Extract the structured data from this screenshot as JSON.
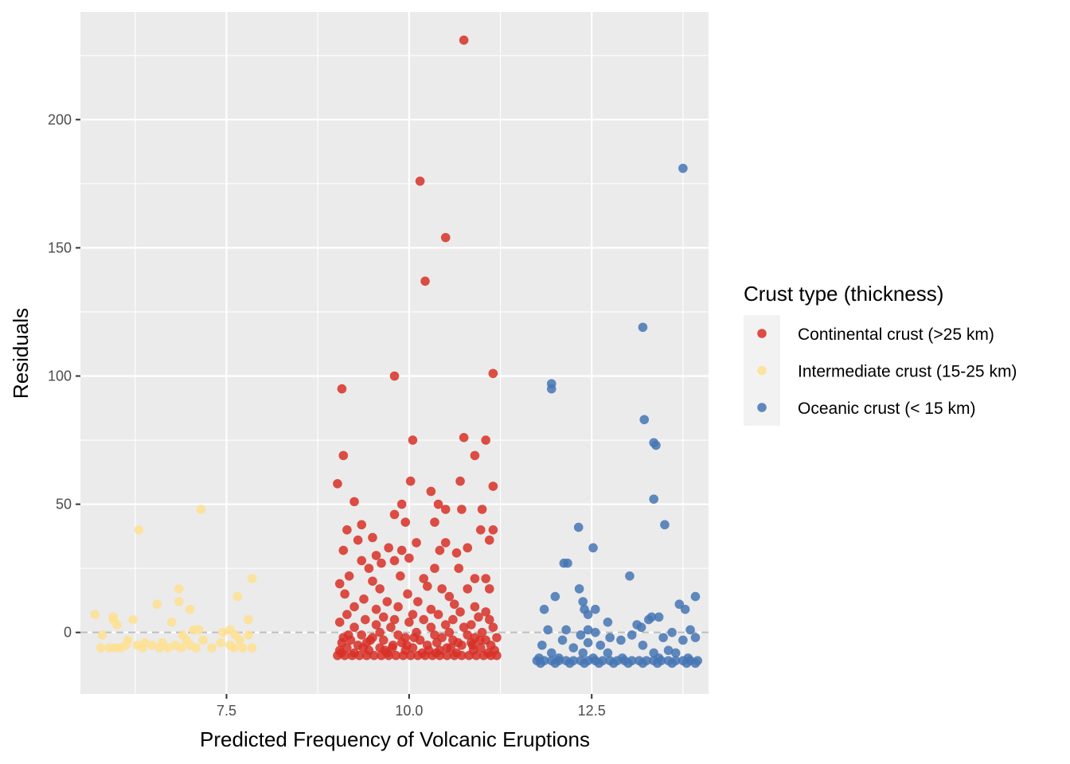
{
  "chart_data": {
    "type": "scatter",
    "title": "",
    "xlabel": "Predicted Frequency of Volcanic Eruptions",
    "ylabel": "Residuals",
    "xlim": [
      5.5,
      14.1
    ],
    "ylim": [
      -24,
      242
    ],
    "x_ticks": [
      7.5,
      10.0,
      12.5
    ],
    "x_tick_labels": [
      "7.5",
      "10.0",
      "12.5"
    ],
    "y_ticks": [
      0,
      50,
      100,
      150,
      200
    ],
    "y_tick_labels": [
      "0",
      "50",
      "100",
      "150",
      "200"
    ],
    "grid": true,
    "reference_line": {
      "y": 0,
      "style": "dashed",
      "color": "#bdbdbd"
    },
    "legend": {
      "title": "Crust type (thickness)",
      "position": "right"
    },
    "series": [
      {
        "name": "Continental crust (>25 km)",
        "color": "#d73027",
        "points": [
          [
            10.75,
            231
          ],
          [
            10.15,
            176
          ],
          [
            10.5,
            154
          ],
          [
            10.22,
            137
          ],
          [
            9.8,
            100
          ],
          [
            11.15,
            101
          ],
          [
            9.08,
            95
          ],
          [
            10.05,
            75
          ],
          [
            10.75,
            76
          ],
          [
            11.05,
            75
          ],
          [
            9.1,
            69
          ],
          [
            10.9,
            69
          ],
          [
            9.02,
            58
          ],
          [
            10.02,
            59
          ],
          [
            10.7,
            59
          ],
          [
            11.15,
            57
          ],
          [
            10.3,
            55
          ],
          [
            9.25,
            51
          ],
          [
            9.9,
            50
          ],
          [
            10.4,
            50
          ],
          [
            10.5,
            48
          ],
          [
            10.72,
            48
          ],
          [
            11.0,
            48
          ],
          [
            9.8,
            46
          ],
          [
            9.95,
            43
          ],
          [
            10.35,
            43
          ],
          [
            9.35,
            42
          ],
          [
            9.15,
            40
          ],
          [
            10.98,
            40
          ],
          [
            11.15,
            40
          ],
          [
            9.5,
            37
          ],
          [
            9.3,
            36
          ],
          [
            11.1,
            36
          ],
          [
            10.1,
            35
          ],
          [
            10.5,
            35
          ],
          [
            9.72,
            33
          ],
          [
            10.8,
            33
          ],
          [
            9.1,
            32
          ],
          [
            9.9,
            32
          ],
          [
            10.42,
            32
          ],
          [
            9.55,
            30
          ],
          [
            10.0,
            29
          ],
          [
            10.65,
            31
          ],
          [
            9.35,
            28
          ],
          [
            9.8,
            28
          ],
          [
            10.35,
            25
          ],
          [
            10.68,
            25
          ],
          [
            9.45,
            25
          ],
          [
            9.62,
            27
          ],
          [
            9.18,
            22
          ],
          [
            9.88,
            22
          ],
          [
            10.2,
            21
          ],
          [
            10.9,
            21
          ],
          [
            11.05,
            21
          ],
          [
            9.5,
            20
          ],
          [
            10.25,
            18
          ],
          [
            10.45,
            17
          ],
          [
            10.8,
            17
          ],
          [
            11.1,
            17
          ],
          [
            9.05,
            19
          ],
          [
            9.6,
            17
          ],
          [
            9.12,
            15
          ],
          [
            9.98,
            15
          ],
          [
            10.55,
            14
          ],
          [
            9.38,
            13
          ],
          [
            9.7,
            12
          ],
          [
            10.12,
            12
          ],
          [
            10.62,
            11
          ],
          [
            10.9,
            10
          ],
          [
            9.25,
            10
          ],
          [
            9.55,
            9
          ],
          [
            9.85,
            10
          ],
          [
            10.3,
            9
          ],
          [
            10.7,
            8
          ],
          [
            11.05,
            8
          ],
          [
            9.15,
            7
          ],
          [
            9.65,
            6
          ],
          [
            10.05,
            7
          ],
          [
            10.4,
            7
          ],
          [
            10.95,
            6
          ],
          [
            9.4,
            5
          ],
          [
            9.8,
            5
          ],
          [
            10.2,
            5
          ],
          [
            10.6,
            5
          ],
          [
            11.1,
            5
          ],
          [
            9.05,
            4
          ],
          [
            9.55,
            3
          ],
          [
            10.0,
            4
          ],
          [
            10.5,
            3
          ],
          [
            10.85,
            3
          ],
          [
            9.25,
            2
          ],
          [
            9.75,
            2
          ],
          [
            10.3,
            2
          ],
          [
            10.75,
            2
          ],
          [
            11.15,
            2
          ],
          [
            9.6,
            0
          ],
          [
            10.1,
            0
          ],
          [
            10.55,
            0
          ],
          [
            11.0,
            0
          ],
          [
            9.35,
            -1
          ],
          [
            9.85,
            -1
          ],
          [
            10.35,
            -1
          ],
          [
            10.8,
            -1
          ],
          [
            9.1,
            -2
          ],
          [
            9.5,
            -2
          ],
          [
            9.95,
            -2
          ],
          [
            10.45,
            -2
          ],
          [
            10.9,
            -2
          ],
          [
            11.2,
            -2
          ],
          [
            9.2,
            -3
          ],
          [
            9.65,
            -3
          ],
          [
            10.15,
            -3
          ],
          [
            10.6,
            -3
          ],
          [
            11.05,
            -3
          ],
          [
            9.08,
            -4
          ],
          [
            9.42,
            -4
          ],
          [
            9.9,
            -4
          ],
          [
            10.38,
            -4
          ],
          [
            10.85,
            -4
          ],
          [
            9.3,
            -5
          ],
          [
            9.78,
            -5
          ],
          [
            10.25,
            -5
          ],
          [
            10.72,
            -5
          ],
          [
            11.12,
            -5
          ],
          [
            9.15,
            -6
          ],
          [
            9.6,
            -6
          ],
          [
            10.05,
            -6
          ],
          [
            10.52,
            -6
          ],
          [
            10.98,
            -6
          ],
          [
            9.05,
            -7
          ],
          [
            9.45,
            -7
          ],
          [
            9.95,
            -7
          ],
          [
            10.42,
            -7
          ],
          [
            10.88,
            -7
          ],
          [
            9.25,
            -8
          ],
          [
            9.7,
            -8
          ],
          [
            10.18,
            -8
          ],
          [
            10.65,
            -8
          ],
          [
            11.08,
            -8
          ],
          [
            9.02,
            -9
          ],
          [
            9.12,
            -9
          ],
          [
            9.22,
            -9
          ],
          [
            9.32,
            -9
          ],
          [
            9.42,
            -9
          ],
          [
            9.52,
            -9
          ],
          [
            9.62,
            -9
          ],
          [
            9.72,
            -9
          ],
          [
            9.82,
            -9
          ],
          [
            9.92,
            -9
          ],
          [
            10.02,
            -9
          ],
          [
            10.12,
            -9
          ],
          [
            10.22,
            -9
          ],
          [
            10.32,
            -9
          ],
          [
            10.42,
            -9
          ],
          [
            10.52,
            -9
          ],
          [
            10.62,
            -9
          ],
          [
            10.72,
            -9
          ],
          [
            10.82,
            -9
          ],
          [
            10.92,
            -9
          ],
          [
            11.02,
            -9
          ],
          [
            11.12,
            -9
          ],
          [
            11.2,
            -9
          ],
          [
            9.07,
            -8
          ],
          [
            9.37,
            -6
          ],
          [
            9.67,
            -7
          ],
          [
            9.97,
            -5
          ],
          [
            10.27,
            -7
          ],
          [
            10.57,
            -6
          ],
          [
            10.87,
            -5
          ],
          [
            11.17,
            -7
          ],
          [
            9.17,
            -1
          ],
          [
            9.47,
            -3
          ],
          [
            9.77,
            -6
          ],
          [
            10.07,
            -2
          ],
          [
            10.37,
            -8
          ],
          [
            10.67,
            -4
          ],
          [
            10.97,
            -3
          ]
        ]
      },
      {
        "name": "Intermediate crust (15-25 km)",
        "color": "#fee090",
        "points": [
          [
            7.15,
            48
          ],
          [
            6.3,
            40
          ],
          [
            7.85,
            21
          ],
          [
            6.85,
            17
          ],
          [
            7.65,
            14
          ],
          [
            6.55,
            11
          ],
          [
            6.85,
            12
          ],
          [
            7.0,
            9
          ],
          [
            5.7,
            7
          ],
          [
            5.95,
            6
          ],
          [
            5.95,
            5
          ],
          [
            6.22,
            5
          ],
          [
            6.75,
            4
          ],
          [
            7.8,
            5
          ],
          [
            6.0,
            3
          ],
          [
            7.05,
            1
          ],
          [
            7.12,
            1
          ],
          [
            7.55,
            1
          ],
          [
            5.8,
            -1
          ],
          [
            7.45,
            0
          ],
          [
            7.62,
            -1
          ],
          [
            6.9,
            -1
          ],
          [
            7.8,
            -1
          ],
          [
            6.15,
            -3
          ],
          [
            6.38,
            -4
          ],
          [
            6.62,
            -4
          ],
          [
            6.95,
            -3
          ],
          [
            7.18,
            -3
          ],
          [
            7.42,
            -4
          ],
          [
            7.68,
            -3
          ],
          [
            5.78,
            -6
          ],
          [
            5.9,
            -6
          ],
          [
            6.05,
            -6
          ],
          [
            6.28,
            -5
          ],
          [
            6.48,
            -5
          ],
          [
            6.7,
            -6
          ],
          [
            6.88,
            -6
          ],
          [
            7.08,
            -6
          ],
          [
            7.3,
            -6
          ],
          [
            7.55,
            -5
          ],
          [
            7.72,
            -6
          ],
          [
            7.85,
            -6
          ],
          [
            6.12,
            -5
          ],
          [
            6.58,
            -6
          ],
          [
            6.8,
            -5
          ],
          [
            7.0,
            -5
          ],
          [
            7.6,
            -6
          ],
          [
            6.35,
            -6
          ],
          [
            5.98,
            -6
          ]
        ]
      },
      {
        "name": "Oceanic crust (< 15 km)",
        "color": "#4575b4",
        "points": [
          [
            13.75,
            181
          ],
          [
            13.2,
            119
          ],
          [
            13.22,
            83
          ],
          [
            13.35,
            74
          ],
          [
            13.38,
            73
          ],
          [
            13.35,
            52
          ],
          [
            13.5,
            42
          ],
          [
            11.95,
            97
          ],
          [
            11.95,
            95
          ],
          [
            12.32,
            41
          ],
          [
            12.52,
            33
          ],
          [
            12.12,
            27
          ],
          [
            12.17,
            27
          ],
          [
            13.02,
            22
          ],
          [
            12.33,
            17
          ],
          [
            12.0,
            14
          ],
          [
            13.92,
            14
          ],
          [
            12.38,
            12
          ],
          [
            13.7,
            11
          ],
          [
            11.85,
            9
          ],
          [
            12.4,
            9
          ],
          [
            12.55,
            9
          ],
          [
            13.78,
            9
          ],
          [
            12.45,
            7
          ],
          [
            13.32,
            6
          ],
          [
            13.42,
            6
          ],
          [
            13.28,
            5
          ],
          [
            12.72,
            4
          ],
          [
            13.12,
            3
          ],
          [
            12.15,
            1
          ],
          [
            13.18,
            2
          ],
          [
            12.45,
            1
          ],
          [
            13.85,
            1
          ],
          [
            11.9,
            1
          ],
          [
            12.55,
            0
          ],
          [
            13.6,
            0
          ],
          [
            12.35,
            -1
          ],
          [
            12.75,
            -2
          ],
          [
            13.05,
            -1
          ],
          [
            13.48,
            -2
          ],
          [
            13.92,
            -2
          ],
          [
            12.1,
            -3
          ],
          [
            12.45,
            -4
          ],
          [
            12.9,
            -3
          ],
          [
            13.75,
            -3
          ],
          [
            11.82,
            -5
          ],
          [
            12.25,
            -6
          ],
          [
            12.62,
            -5
          ],
          [
            13.2,
            -5
          ],
          [
            13.55,
            -7
          ],
          [
            11.95,
            -8
          ],
          [
            12.38,
            -8
          ],
          [
            12.72,
            -8
          ],
          [
            13.35,
            -8
          ],
          [
            13.65,
            -8
          ],
          [
            11.78,
            -10
          ],
          [
            12.05,
            -10
          ],
          [
            12.52,
            -10
          ],
          [
            12.92,
            -10
          ],
          [
            13.42,
            -10
          ],
          [
            13.82,
            -10
          ],
          [
            11.75,
            -11
          ],
          [
            11.85,
            -11
          ],
          [
            11.95,
            -11
          ],
          [
            12.05,
            -11
          ],
          [
            12.15,
            -11
          ],
          [
            12.25,
            -11
          ],
          [
            12.35,
            -11
          ],
          [
            12.45,
            -11
          ],
          [
            12.55,
            -11
          ],
          [
            12.65,
            -11
          ],
          [
            12.75,
            -11
          ],
          [
            12.85,
            -11
          ],
          [
            12.95,
            -11
          ],
          [
            13.05,
            -11
          ],
          [
            13.15,
            -11
          ],
          [
            13.25,
            -11
          ],
          [
            13.35,
            -11
          ],
          [
            13.45,
            -11
          ],
          [
            13.55,
            -11
          ],
          [
            13.65,
            -11
          ],
          [
            13.75,
            -11
          ],
          [
            13.85,
            -11
          ],
          [
            13.95,
            -11
          ],
          [
            11.8,
            -12
          ],
          [
            12.0,
            -12
          ],
          [
            12.2,
            -12
          ],
          [
            12.4,
            -12
          ],
          [
            12.6,
            -12
          ],
          [
            12.8,
            -12
          ],
          [
            13.0,
            -12
          ],
          [
            13.2,
            -12
          ],
          [
            13.4,
            -12
          ],
          [
            13.6,
            -12
          ],
          [
            13.8,
            -12
          ],
          [
            13.92,
            -12
          ]
        ]
      }
    ]
  }
}
